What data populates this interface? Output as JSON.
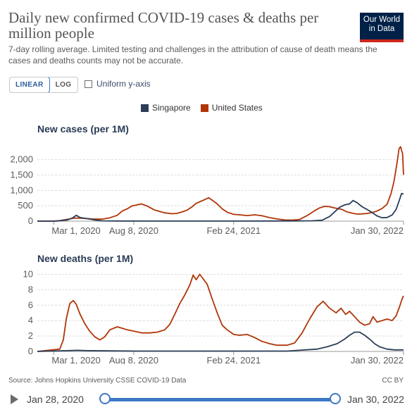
{
  "header": {
    "title": "Daily new confirmed COVID-19 cases & deaths per million people",
    "subtitle": "7-day rolling average. Limited testing and challenges in the attribution of cause of death means the cases and deaths counts may not be accurate.",
    "logo_line1": "Our World",
    "logo_line2": "in Data"
  },
  "controls": {
    "linear_label": "LINEAR",
    "log_label": "LOG",
    "uniform_label": "Uniform y-axis"
  },
  "legend": [
    {
      "name": "Singapore",
      "color": "#2b3d58"
    },
    {
      "name": "United States",
      "color": "#b13507"
    }
  ],
  "footer": {
    "source": "Source: Johns Hopkins University CSSE COVID-19 Data",
    "license": "CC BY"
  },
  "timeline": {
    "start": "Jan 28, 2020",
    "end": "Jan 30, 2022"
  },
  "chart_data": [
    {
      "type": "line",
      "title": "New cases (per 1M)",
      "xlabel": "",
      "ylabel": "",
      "x_start": "2020-01-28",
      "x_end": "2022-01-30",
      "x_ticks": [
        {
          "label": "Mar 1, 2020",
          "day": 33
        },
        {
          "label": "Aug 8, 2020",
          "day": 193
        },
        {
          "label": "Feb 24, 2021",
          "day": 393
        },
        {
          "label": "Jan 30, 2022",
          "day": 733
        }
      ],
      "y_ticks": [
        0,
        500,
        1000,
        1500,
        2000
      ],
      "y_tick_labels": [
        "0",
        "500",
        "1,000",
        "1,500",
        "2,000"
      ],
      "ylim": [
        0,
        2450
      ],
      "grid": true,
      "series": [
        {
          "name": "United States",
          "color": "#b13507",
          "points": [
            [
              0,
              0
            ],
            [
              30,
              0
            ],
            [
              45,
              15
            ],
            [
              60,
              60
            ],
            [
              75,
              100
            ],
            [
              90,
              95
            ],
            [
              110,
              70
            ],
            [
              130,
              65
            ],
            [
              145,
              110
            ],
            [
              160,
              190
            ],
            [
              170,
              330
            ],
            [
              180,
              400
            ],
            [
              190,
              500
            ],
            [
              200,
              530
            ],
            [
              208,
              560
            ],
            [
              220,
              490
            ],
            [
              235,
              360
            ],
            [
              255,
              270
            ],
            [
              270,
              240
            ],
            [
              280,
              255
            ],
            [
              290,
              300
            ],
            [
              300,
              360
            ],
            [
              310,
              470
            ],
            [
              318,
              580
            ],
            [
              325,
              630
            ],
            [
              335,
              700
            ],
            [
              343,
              760
            ],
            [
              352,
              660
            ],
            [
              360,
              560
            ],
            [
              370,
              400
            ],
            [
              380,
              290
            ],
            [
              393,
              220
            ],
            [
              405,
              205
            ],
            [
              420,
              180
            ],
            [
              435,
              205
            ],
            [
              450,
              175
            ],
            [
              465,
              115
            ],
            [
              480,
              70
            ],
            [
              495,
              40
            ],
            [
              510,
              35
            ],
            [
              525,
              55
            ],
            [
              540,
              180
            ],
            [
              555,
              340
            ],
            [
              565,
              430
            ],
            [
              575,
              480
            ],
            [
              585,
              470
            ],
            [
              595,
              430
            ],
            [
              610,
              380
            ],
            [
              620,
              300
            ],
            [
              630,
              260
            ],
            [
              640,
              230
            ],
            [
              650,
              235
            ],
            [
              660,
              250
            ],
            [
              670,
              280
            ],
            [
              680,
              330
            ],
            [
              690,
              410
            ],
            [
              700,
              550
            ],
            [
              708,
              900
            ],
            [
              714,
              1300
            ],
            [
              720,
              1900
            ],
            [
              724,
              2350
            ],
            [
              727,
              2420
            ],
            [
              729,
              2300
            ],
            [
              731,
              2200
            ],
            [
              733,
              1500
            ]
          ]
        },
        {
          "name": "Singapore",
          "color": "#2b3d58",
          "points": [
            [
              0,
              0
            ],
            [
              40,
              5
            ],
            [
              60,
              40
            ],
            [
              70,
              100
            ],
            [
              78,
              190
            ],
            [
              85,
              120
            ],
            [
              100,
              80
            ],
            [
              115,
              40
            ],
            [
              130,
              10
            ],
            [
              160,
              5
            ],
            [
              250,
              2
            ],
            [
              400,
              3
            ],
            [
              460,
              5
            ],
            [
              520,
              8
            ],
            [
              550,
              12
            ],
            [
              570,
              30
            ],
            [
              585,
              150
            ],
            [
              595,
              300
            ],
            [
              605,
              450
            ],
            [
              615,
              530
            ],
            [
              625,
              560
            ],
            [
              632,
              670
            ],
            [
              640,
              600
            ],
            [
              650,
              470
            ],
            [
              660,
              380
            ],
            [
              670,
              280
            ],
            [
              680,
              170
            ],
            [
              690,
              110
            ],
            [
              700,
              120
            ],
            [
              710,
              200
            ],
            [
              718,
              380
            ],
            [
              724,
              650
            ],
            [
              729,
              900
            ],
            [
              733,
              880
            ]
          ]
        }
      ]
    },
    {
      "type": "line",
      "title": "New deaths (per 1M)",
      "xlabel": "",
      "ylabel": "",
      "x_start": "2020-01-28",
      "x_end": "2022-01-30",
      "x_ticks": [
        {
          "label": "Mar 1, 2020",
          "day": 33
        },
        {
          "label": "Aug 8, 2020",
          "day": 193
        },
        {
          "label": "Feb 24, 2021",
          "day": 393
        },
        {
          "label": "Jan 30, 2022",
          "day": 733
        }
      ],
      "y_ticks": [
        0,
        2,
        4,
        6,
        8,
        10
      ],
      "y_tick_labels": [
        "0",
        "2",
        "4",
        "6",
        "8",
        "10"
      ],
      "ylim": [
        0,
        10.5
      ],
      "grid": true,
      "series": [
        {
          "name": "United States",
          "color": "#b13507",
          "points": [
            [
              0,
              0
            ],
            [
              45,
              0.3
            ],
            [
              52,
              1.5
            ],
            [
              58,
              4.2
            ],
            [
              65,
              6.2
            ],
            [
              72,
              6.6
            ],
            [
              78,
              6.1
            ],
            [
              85,
              4.9
            ],
            [
              95,
              3.6
            ],
            [
              105,
              2.6
            ],
            [
              115,
              1.9
            ],
            [
              125,
              1.5
            ],
            [
              135,
              1.9
            ],
            [
              145,
              2.8
            ],
            [
              160,
              3.2
            ],
            [
              170,
              3.0
            ],
            [
              180,
              2.8
            ],
            [
              195,
              2.6
            ],
            [
              210,
              2.4
            ],
            [
              225,
              2.4
            ],
            [
              240,
              2.5
            ],
            [
              255,
              2.8
            ],
            [
              265,
              3.5
            ],
            [
              275,
              4.8
            ],
            [
              285,
              6.2
            ],
            [
              295,
              7.3
            ],
            [
              305,
              8.6
            ],
            [
              312,
              9.9
            ],
            [
              318,
              9.3
            ],
            [
              325,
              10.0
            ],
            [
              332,
              9.4
            ],
            [
              340,
              8.7
            ],
            [
              350,
              6.8
            ],
            [
              360,
              5.0
            ],
            [
              370,
              3.4
            ],
            [
              380,
              2.8
            ],
            [
              393,
              2.2
            ],
            [
              405,
              2.1
            ],
            [
              420,
              2.2
            ],
            [
              435,
              1.8
            ],
            [
              450,
              1.3
            ],
            [
              465,
              1.0
            ],
            [
              480,
              0.8
            ],
            [
              500,
              0.8
            ],
            [
              515,
              1.1
            ],
            [
              530,
              2.4
            ],
            [
              545,
              4.2
            ],
            [
              560,
              5.8
            ],
            [
              572,
              6.5
            ],
            [
              585,
              5.6
            ],
            [
              598,
              5.0
            ],
            [
              608,
              5.6
            ],
            [
              617,
              4.8
            ],
            [
              625,
              5.2
            ],
            [
              635,
              4.5
            ],
            [
              645,
              3.8
            ],
            [
              655,
              3.4
            ],
            [
              665,
              3.6
            ],
            [
              672,
              4.5
            ],
            [
              680,
              3.8
            ],
            [
              690,
              4.0
            ],
            [
              700,
              4.2
            ],
            [
              710,
              4.0
            ],
            [
              718,
              4.6
            ],
            [
              725,
              5.8
            ],
            [
              730,
              6.8
            ],
            [
              733,
              7.2
            ]
          ]
        },
        {
          "name": "Singapore",
          "color": "#2b3d58",
          "points": [
            [
              0,
              0
            ],
            [
              60,
              0.1
            ],
            [
              80,
              0.15
            ],
            [
              100,
              0.1
            ],
            [
              200,
              0.05
            ],
            [
              400,
              0.05
            ],
            [
              500,
              0.05
            ],
            [
              560,
              0.3
            ],
            [
              580,
              0.6
            ],
            [
              600,
              1.0
            ],
            [
              615,
              1.6
            ],
            [
              625,
              2.1
            ],
            [
              635,
              2.5
            ],
            [
              645,
              2.5
            ],
            [
              655,
              2.1
            ],
            [
              665,
              1.6
            ],
            [
              675,
              1.0
            ],
            [
              685,
              0.6
            ],
            [
              700,
              0.3
            ],
            [
              715,
              0.2
            ],
            [
              733,
              0.2
            ]
          ]
        }
      ]
    }
  ]
}
